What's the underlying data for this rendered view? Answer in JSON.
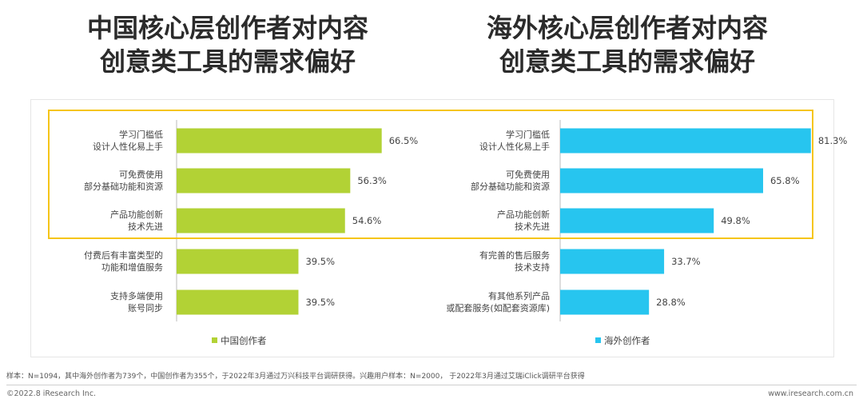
{
  "titles": {
    "left": [
      "中国核心层创作者对内容",
      "创意类工具的需求偏好"
    ],
    "right": [
      "海外核心层创作者对内容",
      "创意类工具的需求偏好"
    ]
  },
  "colors": {
    "china": "#b2d235",
    "overseas": "#27c5ef",
    "highlight": "#f5c518"
  },
  "chart_data": [
    {
      "type": "bar",
      "orientation": "horizontal",
      "categories": [
        [
          "学习门槛低",
          "设计人性化易上手"
        ],
        [
          "可免费使用",
          "部分基础功能和资源"
        ],
        [
          "产品功能创新",
          "技术先进"
        ],
        [
          "付费后有丰富类型的",
          "功能和增值服务"
        ],
        [
          "支持多端使用",
          "账号同步"
        ]
      ],
      "series": [
        {
          "name": "中国创作者",
          "values": [
            66.5,
            56.3,
            54.6,
            39.5,
            39.5
          ]
        }
      ],
      "value_labels": [
        "66.5%",
        "56.3%",
        "54.6%",
        "39.5%",
        "39.5%"
      ],
      "xlim": [
        0,
        100
      ],
      "legend": "bottom"
    },
    {
      "type": "bar",
      "orientation": "horizontal",
      "categories": [
        [
          "学习门槛低",
          "设计人性化易上手"
        ],
        [
          "可免费使用",
          "部分基础功能和资源"
        ],
        [
          "产品功能创新",
          "技术先进"
        ],
        [
          "有完善的售后服务",
          "技术支持"
        ],
        [
          "有其他系列产品",
          "或配套服务(如配套资源库)"
        ]
      ],
      "series": [
        {
          "name": "海外创作者",
          "values": [
            81.3,
            65.8,
            49.8,
            33.7,
            28.8
          ]
        }
      ],
      "value_labels": [
        "81.3%",
        "65.8%",
        "49.8%",
        "33.7%",
        "28.8%"
      ],
      "xlim": [
        0,
        100
      ],
      "legend": "bottom"
    }
  ],
  "footnote": "样本：N=1094，其中海外创作者为739个，中国创作者为355个，于2022年3月通过万兴科技平台调研获得。兴趣用户样本：N=2000， 于2022年3月通过艾瑞iClick调研平台获得",
  "footer": {
    "copyright": "©2022.8 iResearch Inc.",
    "website": "www.iresearch.com.cn"
  }
}
